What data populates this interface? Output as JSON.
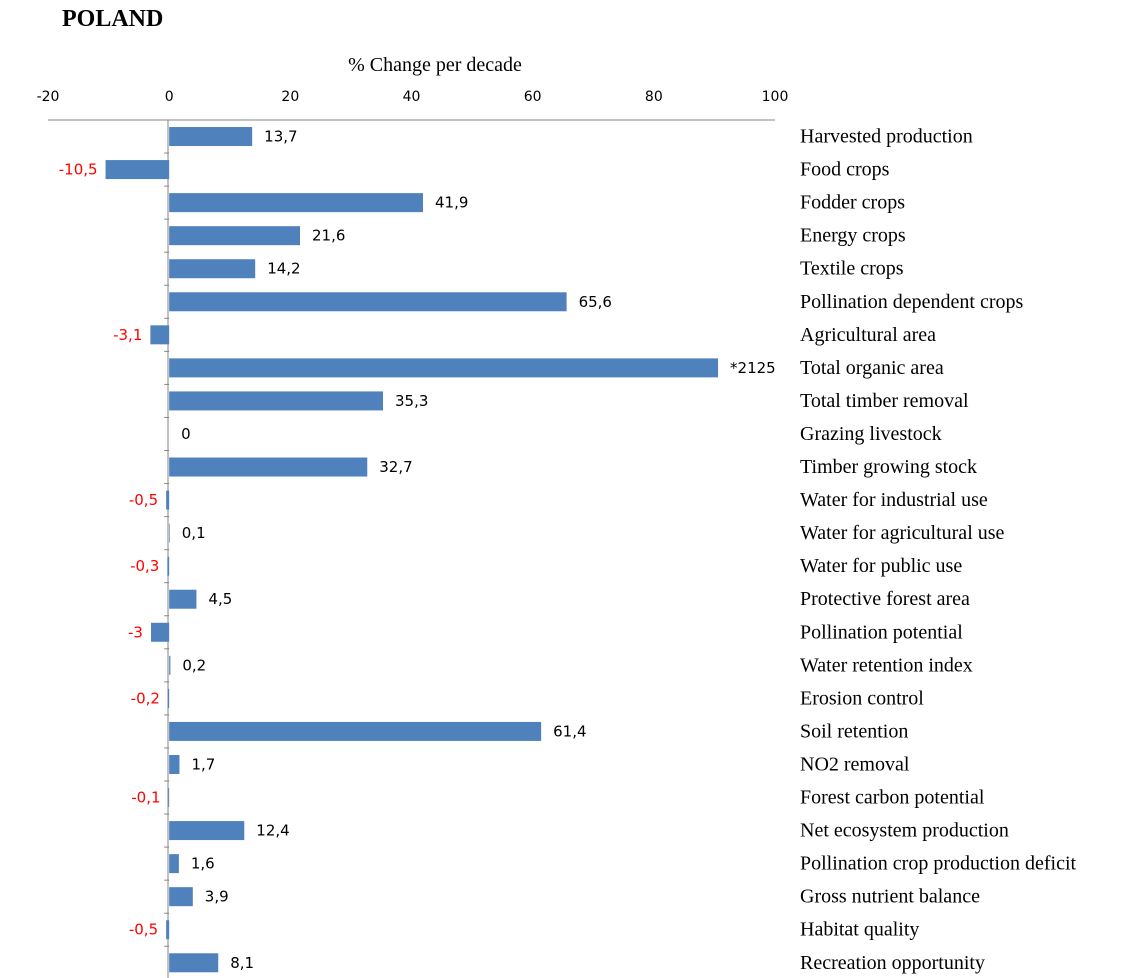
{
  "page_title": "POLAND",
  "chart_data": {
    "type": "bar",
    "orientation": "horizontal",
    "title": "POLAND",
    "xlabel": "% Change per decade",
    "ylabel": "",
    "xlim": [
      -20,
      100
    ],
    "x_ticks": [
      "-20",
      "0",
      "20",
      "40",
      "60",
      "80",
      "100"
    ],
    "grid": false,
    "bar_color": "#4f81bd",
    "positive_label_color": "#000000",
    "negative_label_color": "#ff0000",
    "categories": [
      "Harvested production",
      "Food crops",
      "Fodder crops",
      "Energy crops",
      "Textile crops",
      "Pollination dependent crops",
      "Agricultural area",
      "Total organic area",
      "Total timber removal",
      "Grazing livestock",
      "Timber growing stock",
      "Water for industrial use",
      "Water for agricultural use",
      "Water for public use",
      "Protective forest area",
      "Pollination potential",
      "Water retention index",
      "Erosion control",
      "Soil retention",
      "NO2 removal",
      "Forest carbon potential",
      "Net ecosystem production",
      "Pollination crop production deficit",
      "Gross nutrient balance",
      "Habitat quality",
      "Recreation opportunity"
    ],
    "values": [
      13.7,
      -10.5,
      41.9,
      21.6,
      14.2,
      65.6,
      -3.1,
      2125,
      35.3,
      0,
      32.7,
      -0.5,
      0.1,
      -0.3,
      4.5,
      -3,
      0.2,
      -0.2,
      61.4,
      1.7,
      -0.1,
      12.4,
      1.6,
      3.9,
      -0.5,
      8.1
    ],
    "value_labels": [
      "13,7",
      "-10,5",
      "41,9",
      "21,6",
      "14,2",
      "65,6",
      "-3,1",
      "*2125",
      "35,3",
      "0",
      "32,7",
      "-0,5",
      "0,1",
      "-0,3",
      "4,5",
      "-3",
      "0,2",
      "-0,2",
      "61,4",
      "1,7",
      "-0,1",
      "12,4",
      "1,6",
      "3,9",
      "-0,5",
      "8,1"
    ]
  }
}
